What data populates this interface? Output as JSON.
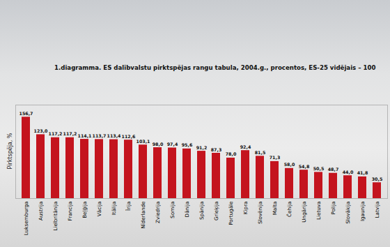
{
  "chart_data": {
    "type": "bar",
    "title": "1.diagramma. ES dalībvalstu pirktspējas rangu tabula, 2004.g., procentos, ES-25 vidējais – 100",
    "y_label": "Pirktspēja, %",
    "categories": [
      "Luksemburga",
      "Austrija",
      "Lielbritānija",
      "Francija",
      "Beļģija",
      "Vācija",
      "Itālija",
      "Īrija",
      "Nīderlande",
      "Zviedrija",
      "Somija",
      "Dānija",
      "Spānija",
      "Grieķija",
      "Portugāle",
      "Kipra",
      "Slovēnija",
      "Malta",
      "Čehija",
      "Ungārija",
      "Lietuva",
      "Polija",
      "Slovākija",
      "Igaunija",
      "Latvija"
    ],
    "values": [
      156.7,
      123.0,
      117.2,
      117.2,
      114.1,
      113.7,
      113.4,
      112.6,
      103.1,
      98.0,
      97.4,
      95.6,
      91.2,
      87.3,
      78.0,
      92.4,
      81.5,
      71.3,
      58.0,
      54.8,
      50.5,
      48.7,
      44.0,
      41.8,
      30.5
    ],
    "value_labels": [
      "156,7",
      "123,0",
      "117,2",
      "117,2",
      "114,1",
      "113,7",
      "113,4",
      "112,6",
      "103,1",
      "98,0",
      "97,4",
      "95,6",
      "91,2",
      "87,3",
      "78,0",
      "92,4",
      "81,5",
      "71,3",
      "58,0",
      "54,8",
      "50,5",
      "48,7",
      "44,0",
      "41,8",
      "30,5"
    ],
    "color": "#c4141e",
    "ylim": [
      0,
      180
    ],
    "data_labels": true,
    "tick_labels": "x"
  }
}
